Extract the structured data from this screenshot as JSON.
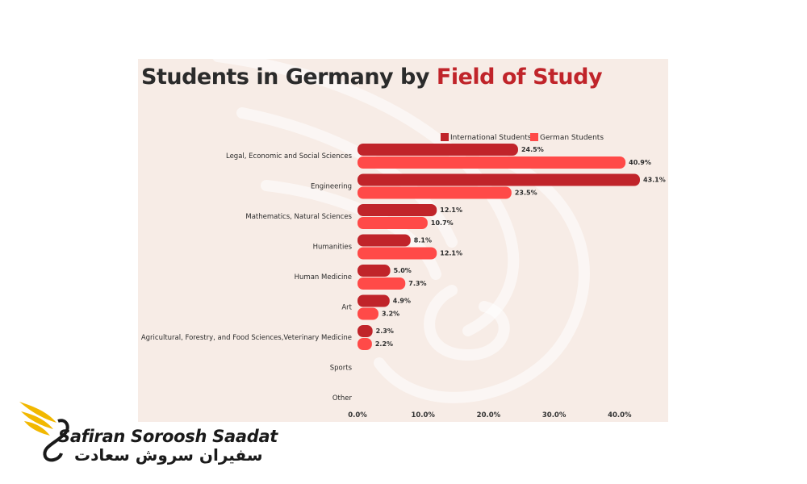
{
  "title": {
    "prefix": "Students in Germany by ",
    "accent": "Field of Study"
  },
  "colors": {
    "international": "#c0242a",
    "german": "#ff4a48",
    "title_accent": "#c0242a"
  },
  "chart_data": {
    "type": "bar",
    "orientation": "horizontal",
    "title": "Students in Germany by Field of Study",
    "categories": [
      "Legal, Economic and Social Sciences",
      "Engineering",
      "Mathematics, Natural Sciences",
      "Humanities",
      "Human Medicine",
      "Art",
      "Agricultural, Forestry, and Food Sciences,Veterinary Medicine",
      "Sports",
      "Other"
    ],
    "series": [
      {
        "name": "International Students",
        "values": [
          24.5,
          43.1,
          12.1,
          8.1,
          5.0,
          4.9,
          2.3,
          null,
          null
        ],
        "labels": [
          "24.5%",
          "43.1%",
          "12.1%",
          "8.1%",
          "5.0%",
          "4.9%",
          "2.3%",
          "",
          ""
        ]
      },
      {
        "name": "German Students",
        "values": [
          40.9,
          23.5,
          10.7,
          12.1,
          7.3,
          3.2,
          2.2,
          null,
          null
        ],
        "labels": [
          "40.9%",
          "23.5%",
          "10.7%",
          "12.1%",
          "7.3%",
          "3.2%",
          "2.2%",
          "",
          ""
        ]
      }
    ],
    "x_ticks": [
      "0.0%",
      "10.0%",
      "20.0%",
      "30.0%",
      "40.0%"
    ],
    "x_tick_values": [
      0,
      10,
      20,
      30,
      40
    ],
    "xlim": [
      0,
      43.1
    ],
    "legend_position": "top-right",
    "grid": false
  },
  "logo": {
    "name_en": "Safiran Soroosh Saadat",
    "name_fa": "سفیران سروش سعادت"
  }
}
